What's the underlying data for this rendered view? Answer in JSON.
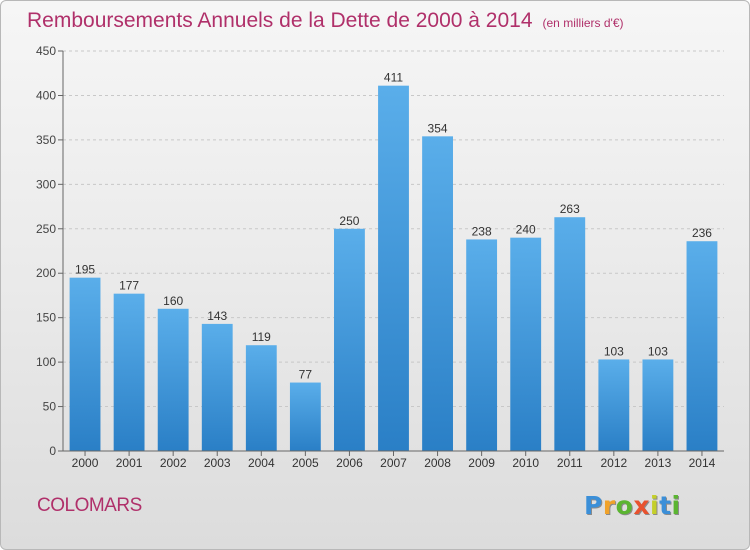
{
  "header": {
    "title": "Remboursements Annuels de la Dette de 2000 à 2014",
    "subtitle": "(en milliers d'€)"
  },
  "footer": {
    "place": "COLOMARS",
    "logo_text": "Proxiti"
  },
  "colors": {
    "accent": "#b0306a",
    "bar_light": "#5aaeea",
    "bar_dark": "#2a7fc6",
    "logo": [
      "#3b8fd8",
      "#f0a22a",
      "#5bb531",
      "#e8522e",
      "#c4cf2a",
      "#3b8fd8",
      "#5bb531"
    ]
  },
  "chart_data": {
    "type": "bar",
    "title": "Remboursements Annuels de la Dette de 2000 à 2014",
    "subtitle": "(en milliers d'€)",
    "categories": [
      "2000",
      "2001",
      "2002",
      "2003",
      "2004",
      "2005",
      "2006",
      "2007",
      "2008",
      "2009",
      "2010",
      "2011",
      "2012",
      "2013",
      "2014"
    ],
    "values": [
      195,
      177,
      160,
      143,
      119,
      77,
      250,
      411,
      354,
      238,
      240,
      263,
      103,
      103,
      236
    ],
    "yticks": [
      0,
      50,
      100,
      150,
      200,
      250,
      300,
      350,
      400,
      450
    ],
    "ylim": [
      0,
      450
    ],
    "grid": true,
    "legend": "none"
  }
}
